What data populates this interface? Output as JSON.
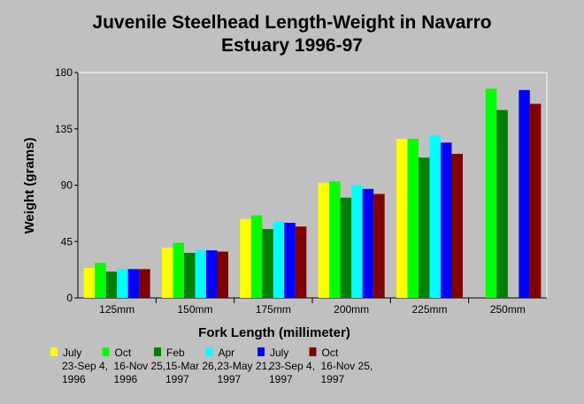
{
  "chart_data": {
    "type": "bar",
    "title_lines": [
      "Juvenile Steelhead Length-Weight in Navarro",
      "Estuary 1996-97"
    ],
    "xlabel": "Fork Length (millimeter)",
    "ylabel": "Weight (grams)",
    "ylim": [
      0,
      180
    ],
    "yticks": [
      "0",
      "45",
      "90",
      "135",
      "180"
    ],
    "grid": false,
    "legend_position": "bottom",
    "categories": [
      "125mm",
      "150mm",
      "175mm",
      "200mm",
      "225mm",
      "250mm"
    ],
    "series": [
      {
        "name_lines": [
          "July",
          "23-Sep 4,",
          "1996"
        ],
        "color": "#ffff00",
        "values": [
          24,
          40,
          63,
          92,
          127,
          null
        ]
      },
      {
        "name_lines": [
          "Oct",
          "16-Nov 25,",
          "1996"
        ],
        "color": "#00ff00",
        "values": [
          28,
          44,
          66,
          93,
          127,
          167
        ]
      },
      {
        "name_lines": [
          "Feb",
          "15-Mar 26,",
          "1997"
        ],
        "color": "#008000",
        "values": [
          21,
          36,
          55,
          80,
          112,
          150
        ]
      },
      {
        "name_lines": [
          "Apr",
          "23-May 21,",
          "1997"
        ],
        "color": "#00ffff",
        "values": [
          23,
          38,
          61,
          90,
          130,
          null
        ]
      },
      {
        "name_lines": [
          "July",
          "23-Sep 4,",
          "1997"
        ],
        "color": "#0000ff",
        "values": [
          23,
          38,
          60,
          87,
          124,
          166
        ]
      },
      {
        "name_lines": [
          "Oct",
          "16-Nov 25,",
          "1997"
        ],
        "color": "#800000",
        "values": [
          23,
          37,
          57,
          83,
          115,
          155
        ]
      }
    ]
  }
}
